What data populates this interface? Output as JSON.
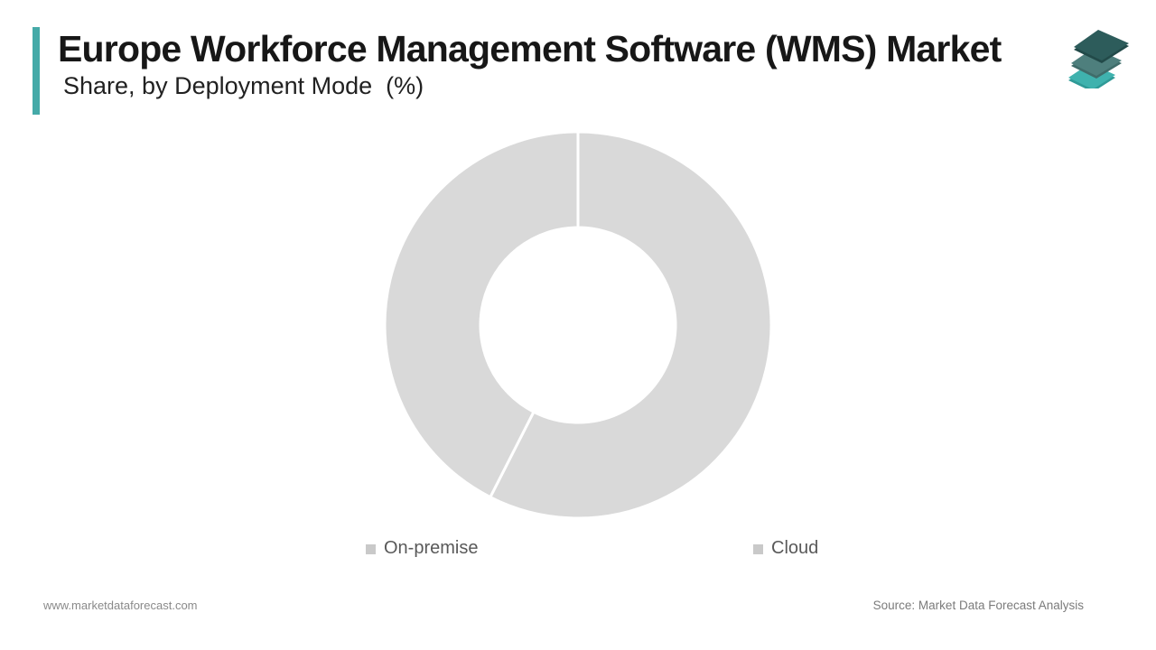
{
  "header": {
    "title": "Europe Workforce Management Software (WMS) Market",
    "subtitle": "Share, by Deployment Mode  (%)",
    "accent_color": "#45aaa8"
  },
  "logo": {
    "name": "market-data-forecast-logo",
    "layers": [
      {
        "position": "bottom",
        "color": "#3fb2ae",
        "edge": "#2f9a97"
      },
      {
        "position": "middle",
        "color": "#4e7f7d",
        "edge": "#3f6c6a"
      },
      {
        "position": "top",
        "color": "#2d5c5b",
        "edge": "#224a49"
      }
    ]
  },
  "chart_data": {
    "type": "pie",
    "donut": true,
    "title": "Europe Workforce Management Software (WMS) Market Share, by Deployment Mode (%)",
    "categories": [
      "On-premise",
      "Cloud"
    ],
    "values": [
      57.5,
      42.5
    ],
    "values_estimated_from_divider_angles": true,
    "start_angle_deg": 0,
    "divider_angles_deg": [
      0,
      207
    ],
    "inner_radius_pct": 50,
    "slice_colors": [
      "#d9d9d9",
      "#d9d9d9"
    ],
    "divider_color": "#ffffff",
    "legend": {
      "position": "bottom",
      "marker_color": "#c9c9c9",
      "text_color": "#595959"
    }
  },
  "footer": {
    "website": "www.marketdataforecast.com",
    "source": "Source: Market Data Forecast Analysis"
  }
}
